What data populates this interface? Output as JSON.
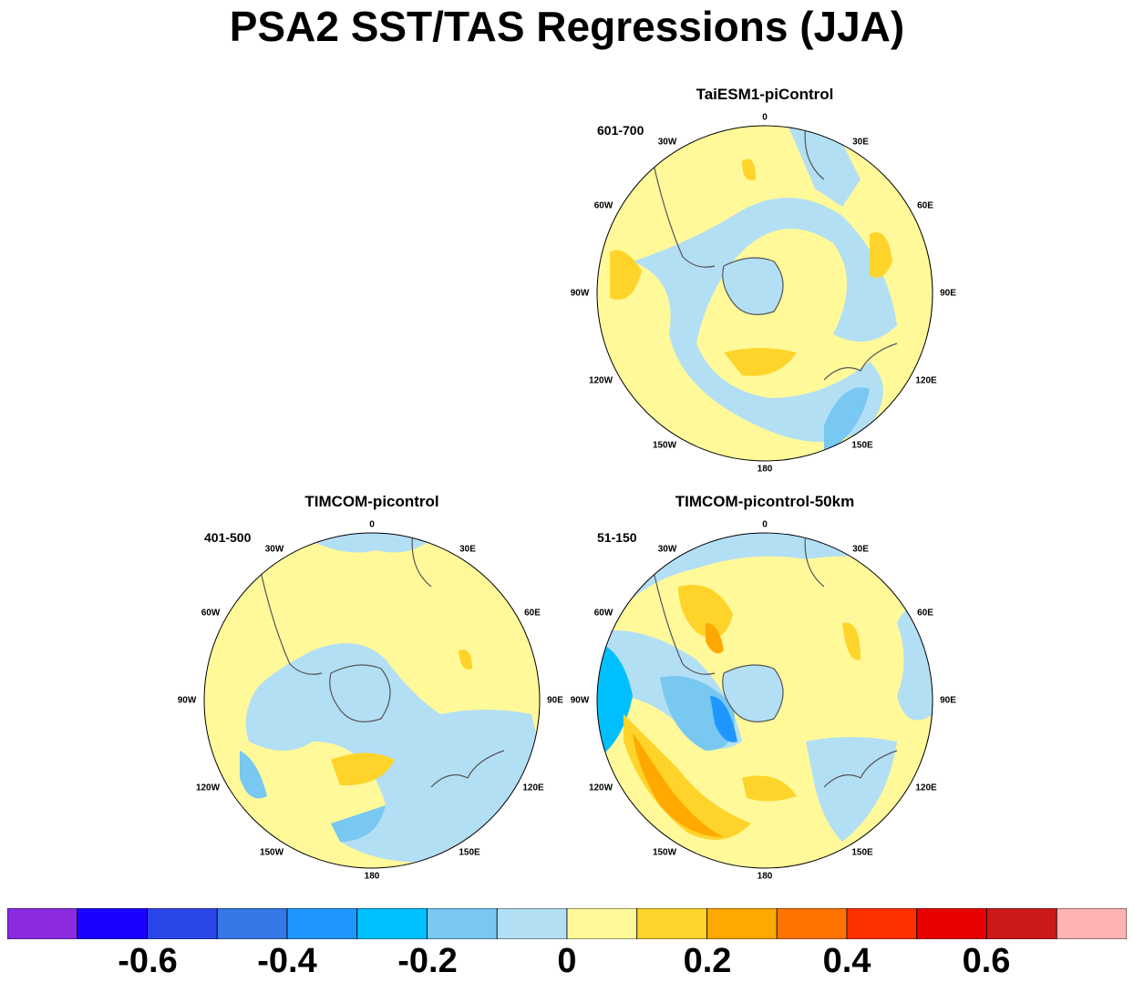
{
  "title": "PSA2 SST/TAS Regressions (JJA)",
  "panels": [
    {
      "name": "TaiESM1-piControl",
      "period": "601-700",
      "longitude_labels": [
        "0",
        "30E",
        "60E",
        "90E",
        "120E",
        "150E",
        "180",
        "150W",
        "120W",
        "90W",
        "60W",
        "30W"
      ]
    },
    {
      "name": "TIMCOM-picontrol",
      "period": "401-500",
      "longitude_labels": [
        "0",
        "30E",
        "60E",
        "90E",
        "120E",
        "150E",
        "180",
        "150W",
        "120W",
        "90W",
        "60W",
        "30W"
      ]
    },
    {
      "name": "TIMCOM-picontrol-50km",
      "period": "51-150",
      "longitude_labels": [
        "0",
        "30E",
        "60E",
        "90E",
        "120E",
        "150E",
        "180",
        "150W",
        "120W",
        "90W",
        "60W",
        "30W"
      ]
    }
  ],
  "colorbar": {
    "colors": [
      "#8a2be2",
      "#1a00ff",
      "#2b46e8",
      "#3678e6",
      "#1f97ff",
      "#00bfff",
      "#78c8f2",
      "#b3dff5",
      "#fff99a",
      "#ffd42a",
      "#ffa800",
      "#ff7400",
      "#ff3000",
      "#e80000",
      "#cc1a1a",
      "#ffb3b3"
    ],
    "tick_labels": [
      "-0.6",
      "-0.4",
      "-0.2",
      "0",
      "0.2",
      "0.4",
      "0.6"
    ]
  }
}
